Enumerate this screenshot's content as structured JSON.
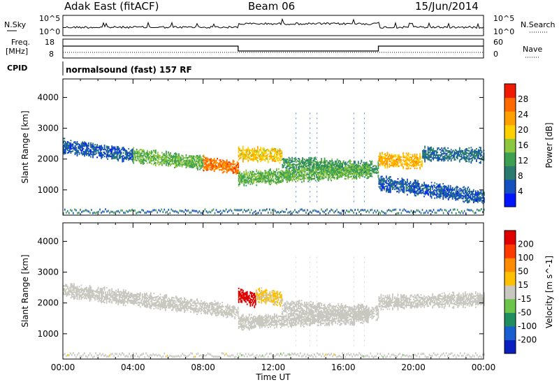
{
  "header": {
    "station": "Adak East (fitACF)",
    "beam": "Beam 06",
    "date": "15/Jun/2014"
  },
  "mini_panels": {
    "nsky": {
      "left_label": "N.Sky",
      "right_label": "N.Search",
      "left_ticks": [
        "10^5",
        "10^0"
      ],
      "right_ticks": [
        "10^5",
        "10^0"
      ]
    },
    "freq": {
      "left_label_1": "Freq.",
      "left_label_2": "[MHz]",
      "right_label": "Nave",
      "left_ticks": [
        "18",
        "8"
      ],
      "right_ticks": [
        "60",
        "0"
      ]
    },
    "cpid": {
      "label": "CPID",
      "text": "normalsound (fast) 157 RF"
    }
  },
  "chart_data": [
    {
      "type": "heatmap",
      "panel": "power",
      "ylabel": "Slant Range [km]",
      "ylim": [
        180,
        4600
      ],
      "y_ticks": [
        "4000",
        "3000",
        "2000",
        "1000"
      ],
      "y_tick_values": [
        4000,
        3000,
        2000,
        1000
      ],
      "colorbar": {
        "label": "Power [dB]",
        "range": [
          0,
          32
        ],
        "ticks": [
          "28",
          "24",
          "20",
          "16",
          "12",
          "8",
          "4"
        ],
        "colors": [
          "#0015ff",
          "#1550c0",
          "#2a7a70",
          "#3ca050",
          "#8dc63f",
          "#ffd000",
          "#ffa000",
          "#ff6a00",
          "#f01a00"
        ]
      },
      "echo_bands": [
        {
          "t_start": 0.0,
          "t_end": 4.0,
          "range_start": 2450,
          "range_end": 2150,
          "value": 6
        },
        {
          "t_start": 4.0,
          "t_end": 8.0,
          "range_start": 2150,
          "range_end": 1900,
          "value": 14
        },
        {
          "t_start": 8.0,
          "t_end": 10.0,
          "range_start": 1900,
          "range_end": 1750,
          "value": 26
        },
        {
          "t_start": 10.0,
          "t_end": 12.5,
          "range_start": 2200,
          "range_end": 2150,
          "value": 20
        },
        {
          "t_start": 12.5,
          "t_end": 18.0,
          "range_start": 1900,
          "range_end": 1700,
          "value": 12
        },
        {
          "t_start": 18.0,
          "t_end": 20.5,
          "range_start": 2000,
          "range_end": 1950,
          "value": 22
        },
        {
          "t_start": 20.5,
          "t_end": 24.0,
          "range_start": 2200,
          "range_end": 2150,
          "value": 8
        },
        {
          "t_start": 10.0,
          "t_end": 17.5,
          "range_start": 1400,
          "range_end": 1650,
          "value": 14
        },
        {
          "t_start": 18.0,
          "t_end": 24.0,
          "range_start": 1250,
          "range_end": 800,
          "value": 6
        }
      ]
    },
    {
      "type": "heatmap",
      "panel": "velocity",
      "ylabel": "Slant Range [km]",
      "xlabel": "Time UT",
      "xlim": [
        0,
        24
      ],
      "x_ticks": [
        "00:00",
        "04:00",
        "08:00",
        "12:00",
        "16:00",
        "20:00",
        "00:00"
      ],
      "x_tick_values": [
        0,
        4,
        8,
        12,
        16,
        20,
        24
      ],
      "ylim": [
        180,
        4600
      ],
      "y_ticks": [
        "4000",
        "3000",
        "2000",
        "1000"
      ],
      "y_tick_values": [
        4000,
        3000,
        2000,
        1000
      ],
      "colorbar": {
        "label": "Velocity [m s^-1]",
        "range": [
          -250,
          250
        ],
        "ticks": [
          "200",
          "100",
          "50",
          "15",
          "-15",
          "-50",
          "-100",
          "-200"
        ],
        "colors": [
          "#0a1fbf",
          "#1a5fd0",
          "#1f8f5f",
          "#6cc54a",
          "#c8c8c0",
          "#ffc000",
          "#ff8c00",
          "#ff3a00",
          "#e00000"
        ]
      },
      "echo_bands": [
        {
          "t_start": 0.0,
          "t_end": 10.0,
          "range_start": 2450,
          "range_end": 1750,
          "value": 0
        },
        {
          "t_start": 10.0,
          "t_end": 11.0,
          "range_start": 2300,
          "range_end": 2100,
          "value": 200
        },
        {
          "t_start": 11.0,
          "t_end": 12.5,
          "range_start": 2300,
          "range_end": 2150,
          "value": 30
        },
        {
          "t_start": 12.5,
          "t_end": 18.0,
          "range_start": 1900,
          "range_end": 1700,
          "value": 0
        },
        {
          "t_start": 18.0,
          "t_end": 24.0,
          "range_start": 2050,
          "range_end": 2150,
          "value": 0
        },
        {
          "t_start": 10.0,
          "t_end": 17.5,
          "range_start": 1400,
          "range_end": 1600,
          "value": -5
        }
      ]
    }
  ]
}
